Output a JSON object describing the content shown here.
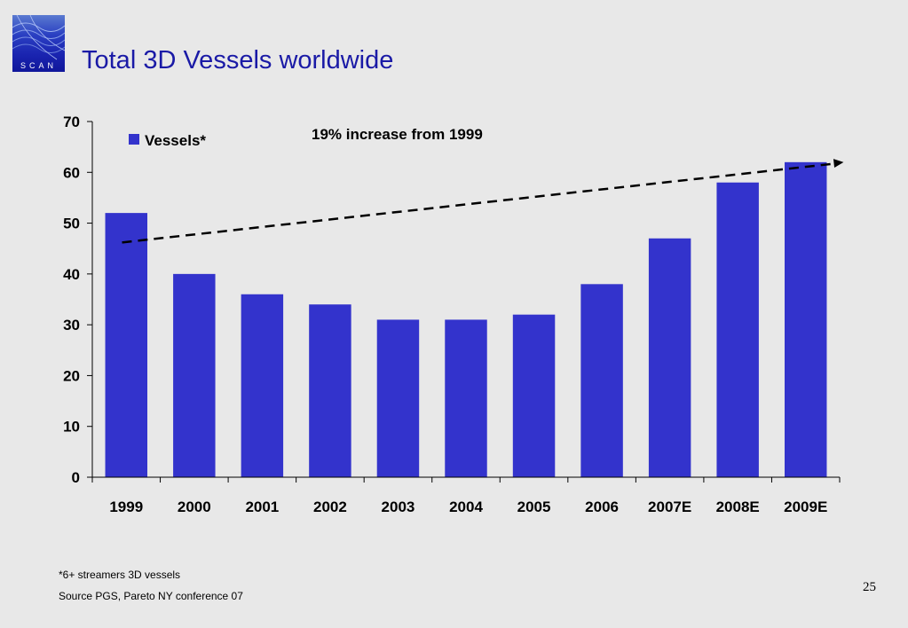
{
  "logo": {
    "text": "SCAN"
  },
  "slide": {
    "title": "Total 3D Vessels worldwide",
    "footnote": "*6+ streamers 3D vessels",
    "source": "Source PGS, Pareto NY conference 07",
    "page_number": "25"
  },
  "chart_data": {
    "type": "bar",
    "categories": [
      "1999",
      "2000",
      "2001",
      "2002",
      "2003",
      "2004",
      "2005",
      "2006",
      "2007E",
      "2008E",
      "2009E"
    ],
    "series": [
      {
        "name": "Vessels*",
        "values": [
          52,
          40,
          36,
          34,
          31,
          31,
          32,
          38,
          47,
          58,
          62
        ]
      }
    ],
    "title": "",
    "xlabel": "",
    "ylabel": "",
    "ylim": [
      0,
      70
    ],
    "yticks": [
      0,
      10,
      20,
      30,
      40,
      50,
      60,
      70
    ],
    "grid": false,
    "legend": "top-left",
    "bar_color": "#3333cc",
    "annotation": {
      "text": "19% increase from 1999",
      "trend_from": [
        "1999",
        46.2
      ],
      "trend_to": [
        "2009E",
        62
      ]
    }
  }
}
